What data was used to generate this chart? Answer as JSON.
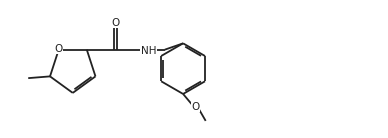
{
  "bg_color": "#ffffff",
  "line_color": "#222222",
  "line_width": 1.3,
  "font_size": 7.5,
  "figsize": [
    3.88,
    1.38
  ],
  "dpi": 100,
  "xlim": [
    0.0,
    11.0
  ],
  "ylim": [
    -1.6,
    1.8
  ]
}
